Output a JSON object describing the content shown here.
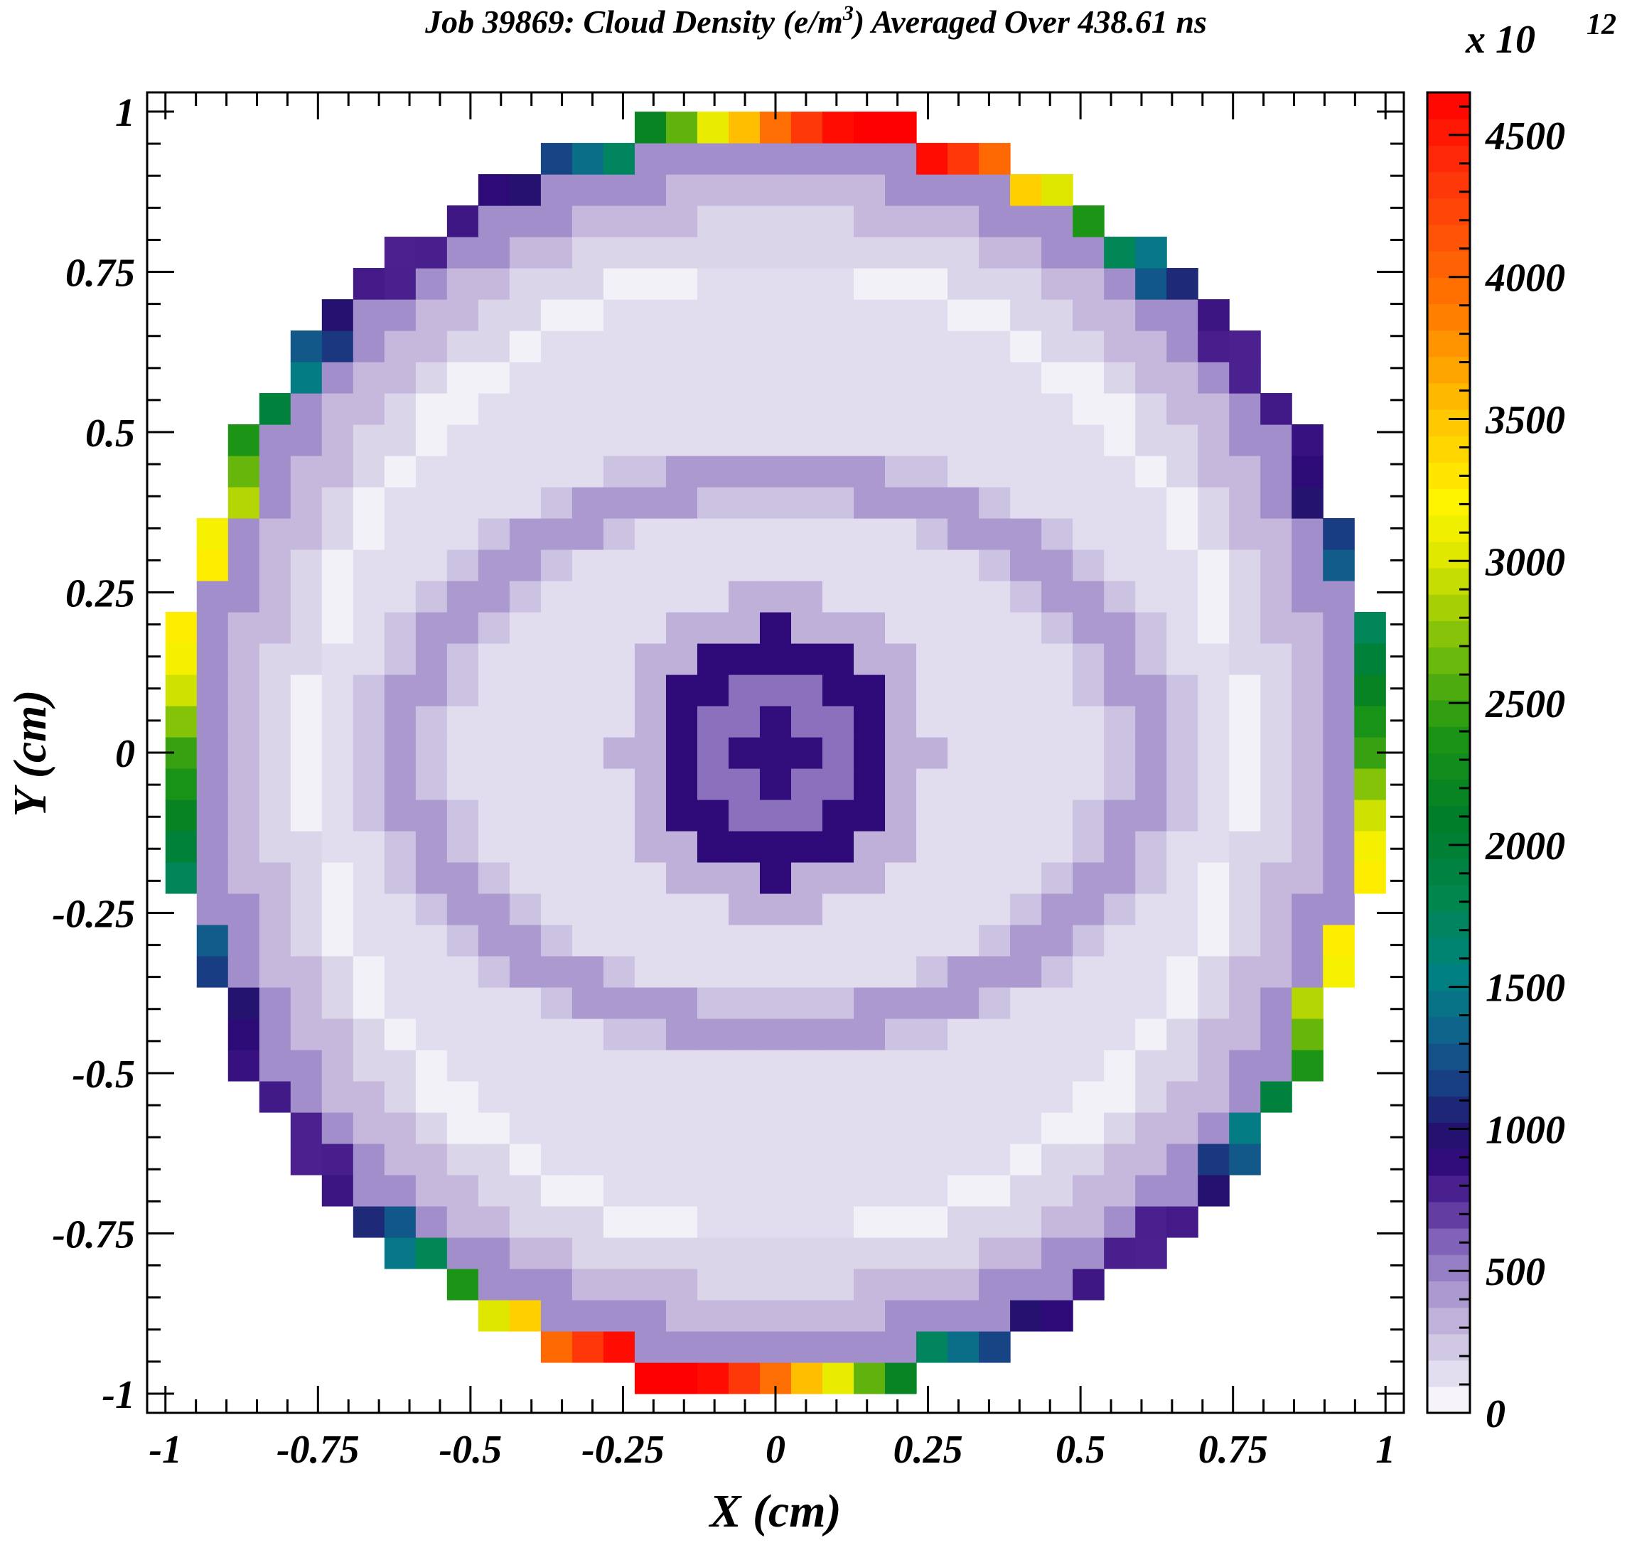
{
  "chart_data": {
    "type": "heatmap",
    "title_main": "Job 39869: Cloud Density (e/m",
    "title_sup": "3",
    "title_rest": ") Averaged Over 438.61 ns",
    "xlabel": "X (cm)",
    "ylabel": "Y (cm)",
    "xlim": [
      -1.03,
      1.03
    ],
    "ylim": [
      -1.03,
      1.03
    ],
    "x_ticks": [
      "-1",
      "-0.75",
      "-0.5",
      "-0.25",
      "0",
      "0.25",
      "0.5",
      "0.75",
      "1"
    ],
    "y_ticks": [
      "-1",
      "-0.75",
      "-0.5",
      "-0.25",
      "0",
      "0.25",
      "0.5",
      "0.75",
      "1"
    ],
    "colorbar": {
      "multiplier": "x 10",
      "exponent": "12",
      "range": [
        0,
        4650
      ],
      "ticks": [
        "0",
        "500",
        "1000",
        "1500",
        "2000",
        "2500",
        "3000",
        "3500",
        "4000",
        "4500"
      ]
    },
    "grid": false,
    "nx": 39,
    "ny": 41,
    "cell_description": "Cell density values in units of 1e12 e/m^3, computed from a radial ring model: white core region surrounded by pale lavender rings, a dense blue-purple central blob, and a bright multicolored wall ring at radius 1 cm."
  }
}
